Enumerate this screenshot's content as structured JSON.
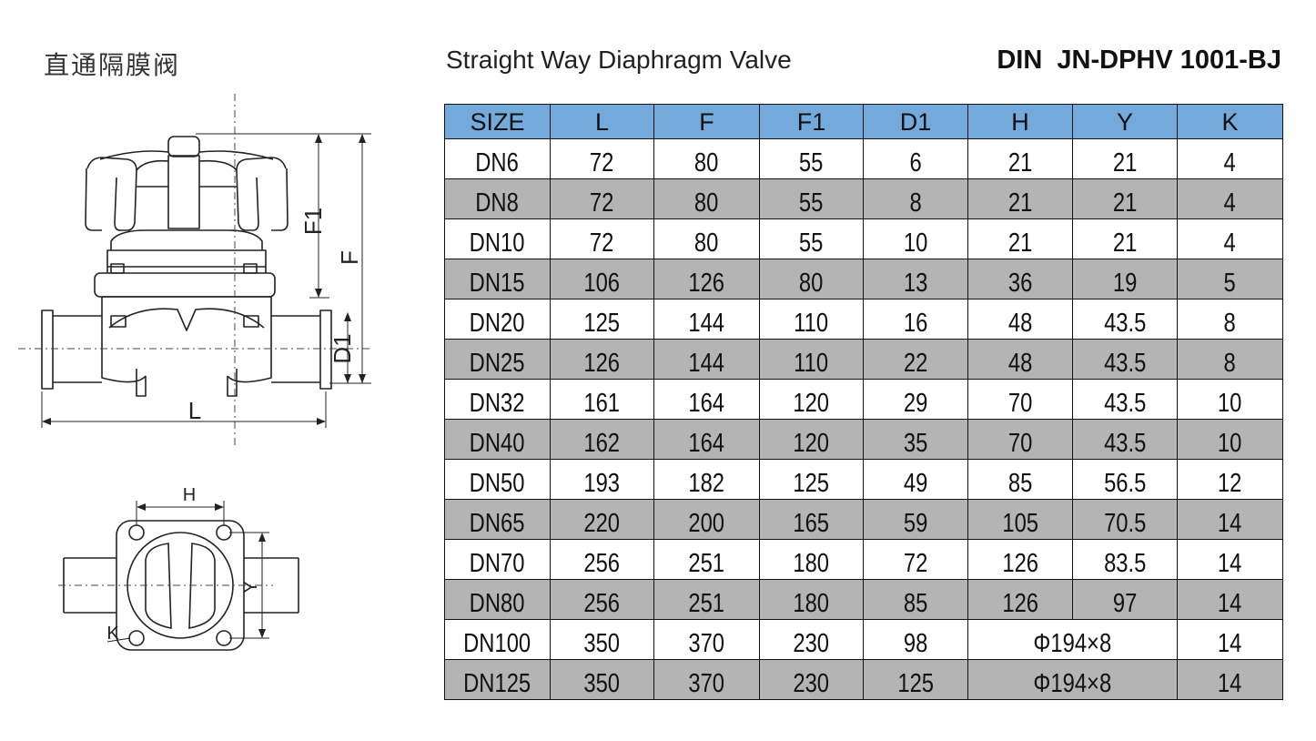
{
  "title_cn": "直通隔膜阀",
  "title_en": "Straight Way Diaphragm Valve",
  "model": "DIN  JN-DPHV 1001-BJ",
  "drawing_labels": {
    "f1": "F1",
    "f": "F",
    "d1": "D1",
    "l": "L",
    "h": "H",
    "y": "Y",
    "k": "K"
  },
  "table": {
    "header_color": "#74a9dc",
    "shade_color": "#b4b4b4",
    "headers": [
      "SIZE",
      "L",
      "F",
      "F1",
      "D1",
      "H",
      "Y",
      "K"
    ],
    "rows": [
      {
        "size": "DN6",
        "l": "72",
        "f": "80",
        "f1": "55",
        "d1": "6",
        "h": "21",
        "y": "21",
        "k": "4"
      },
      {
        "size": "DN8",
        "l": "72",
        "f": "80",
        "f1": "55",
        "d1": "8",
        "h": "21",
        "y": "21",
        "k": "4"
      },
      {
        "size": "DN10",
        "l": "72",
        "f": "80",
        "f1": "55",
        "d1": "10",
        "h": "21",
        "y": "21",
        "k": "4"
      },
      {
        "size": "DN15",
        "l": "106",
        "f": "126",
        "f1": "80",
        "d1": "13",
        "h": "36",
        "y": "19",
        "k": "5"
      },
      {
        "size": "DN20",
        "l": "125",
        "f": "144",
        "f1": "110",
        "d1": "16",
        "h": "48",
        "y": "43.5",
        "k": "8"
      },
      {
        "size": "DN25",
        "l": "126",
        "f": "144",
        "f1": "110",
        "d1": "22",
        "h": "48",
        "y": "43.5",
        "k": "8"
      },
      {
        "size": "DN32",
        "l": "161",
        "f": "164",
        "f1": "120",
        "d1": "29",
        "h": "70",
        "y": "43.5",
        "k": "10"
      },
      {
        "size": "DN40",
        "l": "162",
        "f": "164",
        "f1": "120",
        "d1": "35",
        "h": "70",
        "y": "43.5",
        "k": "10"
      },
      {
        "size": "DN50",
        "l": "193",
        "f": "182",
        "f1": "125",
        "d1": "49",
        "h": "85",
        "y": "56.5",
        "k": "12"
      },
      {
        "size": "DN65",
        "l": "220",
        "f": "200",
        "f1": "165",
        "d1": "59",
        "h": "105",
        "y": "70.5",
        "k": "14"
      },
      {
        "size": "DN70",
        "l": "256",
        "f": "251",
        "f1": "180",
        "d1": "72",
        "h": "126",
        "y": "83.5",
        "k": "14"
      },
      {
        "size": "DN80",
        "l": "256",
        "f": "251",
        "f1": "180",
        "d1": "85",
        "h": "126",
        "y": "97",
        "k": "14"
      }
    ],
    "merged_rows": [
      {
        "size": "DN100",
        "l": "350",
        "f": "370",
        "f1": "230",
        "d1": "98",
        "hy": "Φ194×8",
        "k": "14"
      },
      {
        "size": "DN125",
        "l": "350",
        "f": "370",
        "f1": "230",
        "d1": "125",
        "hy": "Φ194×8",
        "k": "14"
      }
    ]
  }
}
